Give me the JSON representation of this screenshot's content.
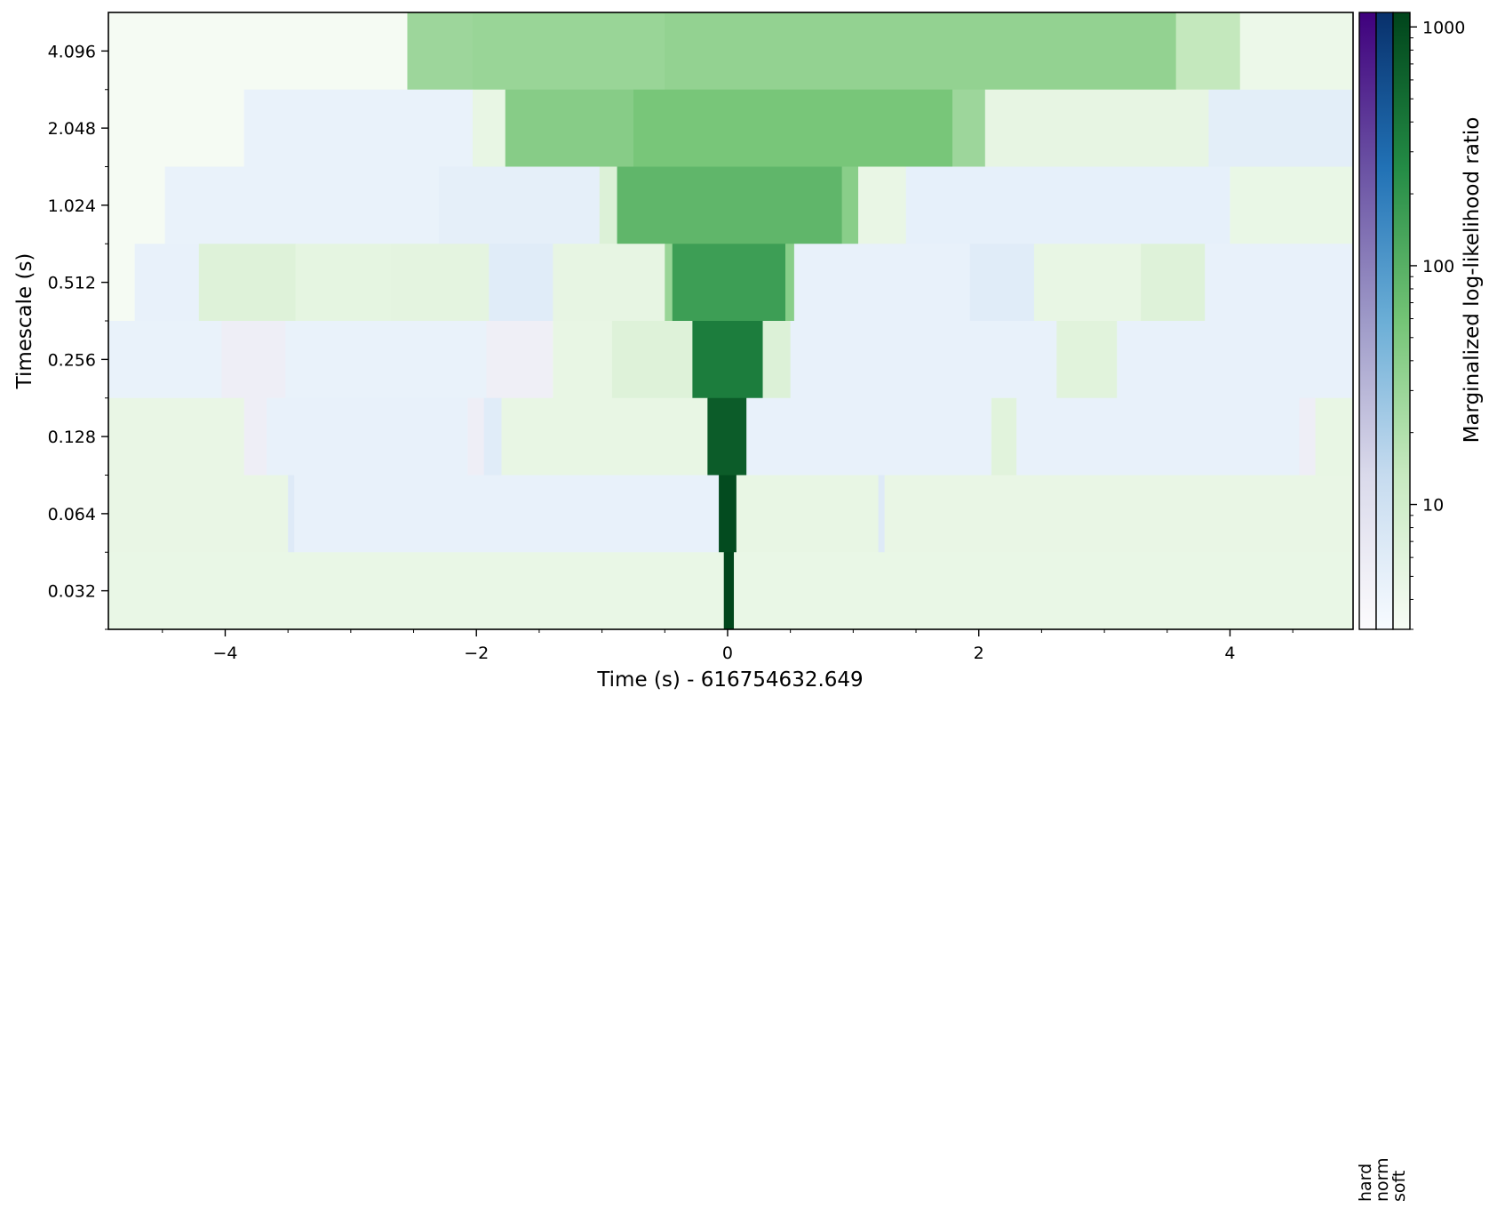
{
  "chart_data": {
    "type": "heatmap",
    "xlabel": "Time (s) - 616754632.649",
    "ylabel": "Timescale (s)",
    "xlim": [
      -4.93,
      4.98
    ],
    "x_ticks": [
      -4,
      -2,
      0,
      2,
      4
    ],
    "x_tick_labels": [
      "−4",
      "−2",
      "0",
      "2",
      "4"
    ],
    "y_rows": [
      "0.032",
      "0.064",
      "0.128",
      "0.256",
      "0.512",
      "1.024",
      "2.048",
      "4.096"
    ],
    "colorbar": {
      "label": "Marginalized log-likelihood ratio",
      "scale": "log",
      "range": [
        3,
        1150
      ],
      "ticks": [
        10,
        100,
        1000
      ],
      "tick_labels": [
        "10",
        "100",
        "1000"
      ],
      "spectra": [
        {
          "name": "hard",
          "colors": [
            "#fcfbfd",
            "#dadaeb",
            "#9e9ac8",
            "#6a51a3",
            "#3f007d"
          ]
        },
        {
          "name": "norm",
          "colors": [
            "#f7fbff",
            "#c6dbef",
            "#6baed6",
            "#2171b5",
            "#08306b"
          ]
        },
        {
          "name": "soft",
          "colors": [
            "#f7fcf5",
            "#c7e9c0",
            "#74c476",
            "#238b45",
            "#00441b"
          ]
        }
      ]
    },
    "rows": [
      {
        "timescale": "4.096",
        "cells": [
          {
            "x0": -4.93,
            "x1": -2.55,
            "v": 3.2,
            "s": "soft"
          },
          {
            "x0": -2.55,
            "x1": -2.03,
            "v": 28,
            "s": "soft"
          },
          {
            "x0": -2.03,
            "x1": -0.5,
            "v": 30,
            "s": "soft"
          },
          {
            "x0": -0.5,
            "x1": 3.57,
            "v": 34,
            "s": "soft"
          },
          {
            "x0": 3.57,
            "x1": 4.08,
            "v": 14,
            "s": "soft"
          },
          {
            "x0": 4.08,
            "x1": 4.98,
            "v": 4.2,
            "s": "soft"
          }
        ]
      },
      {
        "timescale": "2.048",
        "cells": [
          {
            "x0": -4.93,
            "x1": -3.85,
            "v": 3.2,
            "s": "soft"
          },
          {
            "x0": -3.85,
            "x1": -2.03,
            "v": 4.6,
            "s": "norm"
          },
          {
            "x0": -2.03,
            "x1": -1.77,
            "v": 4.8,
            "s": "soft"
          },
          {
            "x0": -1.77,
            "x1": -0.75,
            "v": 42,
            "s": "soft"
          },
          {
            "x0": -0.75,
            "x1": 1.79,
            "v": 55,
            "s": "soft"
          },
          {
            "x0": 1.79,
            "x1": 2.05,
            "v": 28,
            "s": "soft"
          },
          {
            "x0": 2.05,
            "x1": 3.83,
            "v": 5,
            "s": "soft"
          },
          {
            "x0": 3.83,
            "x1": 4.98,
            "v": 5.5,
            "s": "norm"
          }
        ]
      },
      {
        "timescale": "1.024",
        "cells": [
          {
            "x0": -4.93,
            "x1": -4.48,
            "v": 3.2,
            "s": "soft"
          },
          {
            "x0": -4.48,
            "x1": -2.3,
            "v": 4.6,
            "s": "norm"
          },
          {
            "x0": -2.3,
            "x1": -1.02,
            "v": 5.2,
            "s": "norm"
          },
          {
            "x0": -1.02,
            "x1": -0.88,
            "v": 7,
            "s": "soft"
          },
          {
            "x0": -0.88,
            "x1": 0.91,
            "v": 85,
            "s": "soft"
          },
          {
            "x0": 0.91,
            "x1": 1.04,
            "v": 40,
            "s": "soft"
          },
          {
            "x0": 1.04,
            "x1": 1.42,
            "v": 4.7,
            "s": "soft"
          },
          {
            "x0": 1.42,
            "x1": 4.0,
            "v": 5,
            "s": "norm"
          },
          {
            "x0": 4.0,
            "x1": 4.98,
            "v": 4.6,
            "s": "soft"
          }
        ]
      },
      {
        "timescale": "0.512",
        "cells": [
          {
            "x0": -4.93,
            "x1": -4.72,
            "v": 3.2,
            "s": "soft"
          },
          {
            "x0": -4.72,
            "x1": -4.21,
            "v": 4.8,
            "s": "norm"
          },
          {
            "x0": -4.21,
            "x1": -3.44,
            "v": 6.5,
            "s": "soft"
          },
          {
            "x0": -3.44,
            "x1": -2.68,
            "v": 5.2,
            "s": "soft"
          },
          {
            "x0": -2.68,
            "x1": -1.9,
            "v": 5.4,
            "s": "soft"
          },
          {
            "x0": -1.9,
            "x1": -1.39,
            "v": 6,
            "s": "norm"
          },
          {
            "x0": -1.39,
            "x1": -0.5,
            "v": 5,
            "s": "soft"
          },
          {
            "x0": -0.5,
            "x1": -0.44,
            "v": 30,
            "s": "soft"
          },
          {
            "x0": -0.44,
            "x1": 0.46,
            "v": 160,
            "s": "soft"
          },
          {
            "x0": 0.46,
            "x1": 0.53,
            "v": 40,
            "s": "soft"
          },
          {
            "x0": 0.53,
            "x1": 1.93,
            "v": 4.8,
            "s": "norm"
          },
          {
            "x0": 1.93,
            "x1": 2.44,
            "v": 6,
            "s": "norm"
          },
          {
            "x0": 2.44,
            "x1": 3.29,
            "v": 4.8,
            "s": "soft"
          },
          {
            "x0": 3.29,
            "x1": 3.8,
            "v": 6.5,
            "s": "soft"
          },
          {
            "x0": 3.8,
            "x1": 4.98,
            "v": 4.8,
            "s": "norm"
          }
        ]
      },
      {
        "timescale": "0.256",
        "cells": [
          {
            "x0": -4.93,
            "x1": -4.03,
            "v": 4.6,
            "s": "norm"
          },
          {
            "x0": -4.03,
            "x1": -3.52,
            "v": 5.5,
            "s": "hard"
          },
          {
            "x0": -3.52,
            "x1": -1.92,
            "v": 4.6,
            "s": "norm"
          },
          {
            "x0": -1.92,
            "x1": -1.39,
            "v": 5.2,
            "s": "hard"
          },
          {
            "x0": -1.39,
            "x1": -0.92,
            "v": 4.8,
            "s": "soft"
          },
          {
            "x0": -0.92,
            "x1": -0.28,
            "v": 6.5,
            "s": "soft"
          },
          {
            "x0": -0.28,
            "x1": 0.28,
            "v": 350,
            "s": "soft"
          },
          {
            "x0": 0.28,
            "x1": 0.5,
            "v": 7,
            "s": "soft"
          },
          {
            "x0": 0.5,
            "x1": 2.62,
            "v": 4.8,
            "s": "norm"
          },
          {
            "x0": 2.62,
            "x1": 3.1,
            "v": 6,
            "s": "soft"
          },
          {
            "x0": 3.1,
            "x1": 4.98,
            "v": 4.8,
            "s": "norm"
          }
        ]
      },
      {
        "timescale": "0.128",
        "cells": [
          {
            "x0": -4.93,
            "x1": -3.85,
            "v": 4.7,
            "s": "soft"
          },
          {
            "x0": -3.85,
            "x1": -3.67,
            "v": 5.5,
            "s": "hard"
          },
          {
            "x0": -3.67,
            "x1": -2.07,
            "v": 4.7,
            "s": "norm"
          },
          {
            "x0": -2.07,
            "x1": -1.94,
            "v": 5.5,
            "s": "hard"
          },
          {
            "x0": -1.94,
            "x1": -1.8,
            "v": 6,
            "s": "norm"
          },
          {
            "x0": -1.8,
            "x1": -0.16,
            "v": 4.8,
            "s": "soft"
          },
          {
            "x0": -0.16,
            "x1": 0.15,
            "v": 700,
            "s": "soft"
          },
          {
            "x0": 0.15,
            "x1": 2.1,
            "v": 4.8,
            "s": "norm"
          },
          {
            "x0": 2.1,
            "x1": 2.3,
            "v": 6,
            "s": "soft"
          },
          {
            "x0": 2.3,
            "x1": 4.55,
            "v": 4.8,
            "s": "norm"
          },
          {
            "x0": 4.55,
            "x1": 4.68,
            "v": 5.5,
            "s": "hard"
          },
          {
            "x0": 4.68,
            "x1": 4.98,
            "v": 4.8,
            "s": "soft"
          }
        ]
      },
      {
        "timescale": "0.064",
        "cells": [
          {
            "x0": -4.93,
            "x1": -3.5,
            "v": 4.7,
            "s": "soft"
          },
          {
            "x0": -3.5,
            "x1": -3.45,
            "v": 6.5,
            "s": "norm"
          },
          {
            "x0": -3.45,
            "x1": -0.07,
            "v": 4.8,
            "s": "norm"
          },
          {
            "x0": -0.07,
            "x1": 0.07,
            "v": 1000,
            "s": "soft"
          },
          {
            "x0": 0.07,
            "x1": 1.2,
            "v": 4.8,
            "s": "soft"
          },
          {
            "x0": 1.2,
            "x1": 1.25,
            "v": 6.5,
            "s": "norm"
          },
          {
            "x0": 1.25,
            "x1": 4.98,
            "v": 4.7,
            "s": "soft"
          }
        ]
      },
      {
        "timescale": "0.032",
        "cells": [
          {
            "x0": -4.93,
            "x1": -0.03,
            "v": 4.6,
            "s": "soft"
          },
          {
            "x0": -0.03,
            "x1": 0.05,
            "v": 1100,
            "s": "soft"
          },
          {
            "x0": 0.05,
            "x1": 4.98,
            "v": 4.6,
            "s": "soft"
          }
        ]
      }
    ]
  }
}
